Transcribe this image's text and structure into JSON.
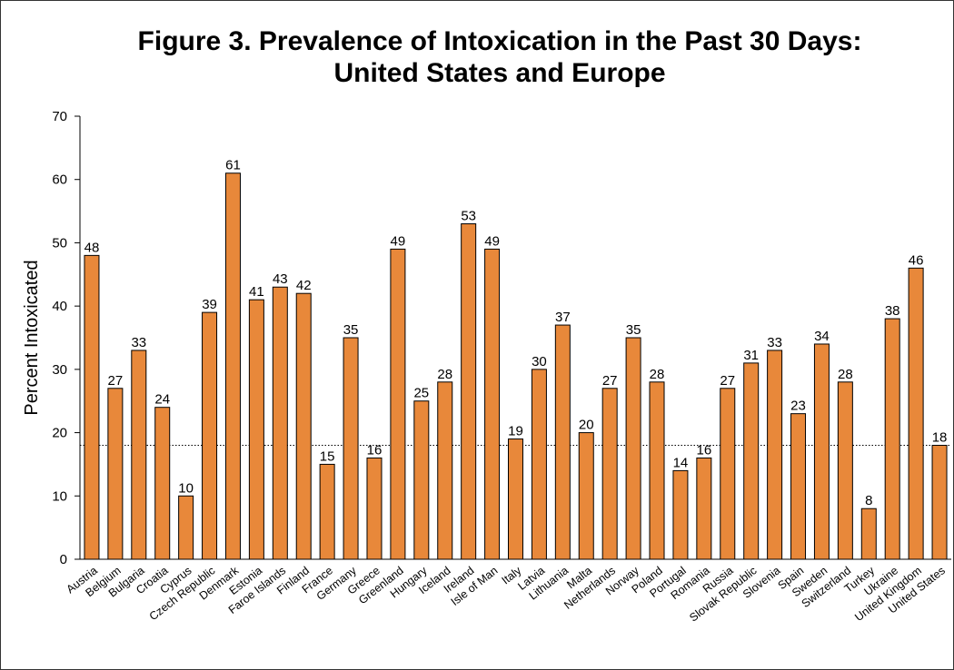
{
  "chart_data": {
    "type": "bar",
    "title": [
      "Figure 3. Prevalence of Intoxication in the Past 30 Days:",
      "United States and Europe"
    ],
    "ylabel": "Percent Intoxicated",
    "xlabel": "",
    "ylim": [
      0,
      70
    ],
    "yticks": [
      0,
      10,
      20,
      30,
      40,
      50,
      60,
      70
    ],
    "bar_color": "#e8883a",
    "bar_stroke": "#000000",
    "reference_line": {
      "value": 18,
      "style": "dotted"
    },
    "categories": [
      "Austria",
      "Belgium",
      "Bulgaria",
      "Croatia",
      "Cyprus",
      "Czech Republic",
      "Denmark",
      "Estonia",
      "Faroe Islands",
      "Finland",
      "France",
      "Germany",
      "Greece",
      "Greenland",
      "Hungary",
      "Iceland",
      "Ireland",
      "Isle of Man",
      "Italy",
      "Latvia",
      "Lithuania",
      "Malta",
      "Netherlands",
      "Norway",
      "Poland",
      "Portugal",
      "Romania",
      "Russia",
      "Slovak Republic",
      "Slovenia",
      "Spain",
      "Sweden",
      "Switzerland",
      "Turkey",
      "Ukraine",
      "United Kingdom",
      "United States"
    ],
    "values": [
      48,
      27,
      33,
      24,
      10,
      39,
      61,
      41,
      43,
      42,
      15,
      35,
      16,
      49,
      25,
      28,
      53,
      49,
      19,
      30,
      37,
      20,
      27,
      35,
      28,
      14,
      16,
      27,
      31,
      33,
      23,
      34,
      28,
      8,
      38,
      46,
      18
    ],
    "grid": false,
    "legend": false
  }
}
